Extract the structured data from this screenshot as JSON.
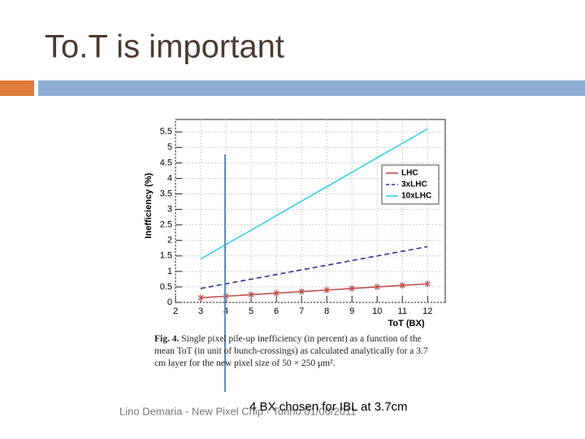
{
  "slide": {
    "title": "To.T is important",
    "footer": "Lino Demaria - New Pixel Chip - Torino 01/06/2011",
    "annotation": "4 BX chosen for IBL at 3.7cm"
  },
  "caption": {
    "label": "Fig. 4.",
    "text": "Single pixel pile-up inefficiency (in percent) as a function of the mean ToT (in unit of bunch-crossings) as calculated analytically for a 3.7 cm layer for the new pixel size of 50 × 250 μm²."
  },
  "chart_data": {
    "type": "line",
    "x_label": "ToT (BX)",
    "y_label": "Inefficiency (%)",
    "x": [
      3,
      4,
      5,
      6,
      7,
      8,
      9,
      10,
      11,
      12
    ],
    "series": [
      {
        "name": "LHC",
        "color": "#c0504d",
        "dash": "solid",
        "markers": true,
        "values": [
          0.15,
          0.2,
          0.25,
          0.3,
          0.35,
          0.4,
          0.45,
          0.5,
          0.55,
          0.6
        ]
      },
      {
        "name": "3xLHC",
        "color": "#2b2f8f",
        "dash": "dashed",
        "markers": false,
        "values": [
          0.45,
          0.6,
          0.75,
          0.9,
          1.05,
          1.2,
          1.35,
          1.5,
          1.65,
          1.8
        ]
      },
      {
        "name": "10xLHC",
        "color": "#3ad0e0",
        "dash": "solid",
        "markers": false,
        "values": [
          1.4,
          1.87,
          2.33,
          2.8,
          3.27,
          3.73,
          4.2,
          4.67,
          5.13,
          5.6
        ]
      }
    ],
    "xlim": [
      2,
      12.7
    ],
    "xticks": [
      2,
      3,
      4,
      5,
      6,
      7,
      8,
      9,
      10,
      11,
      12
    ],
    "ylim": [
      0,
      5.9
    ],
    "yticks": [
      0,
      0.5,
      1,
      1.5,
      2,
      2.5,
      3,
      3.5,
      4,
      4.5,
      5,
      5.5
    ],
    "grid": true,
    "legend": "upper right"
  }
}
